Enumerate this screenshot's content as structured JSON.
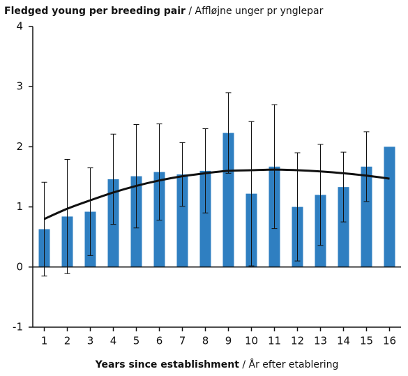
{
  "chart_data": {
    "type": "bar",
    "title_main": "Fledged young per breeding pair",
    "title_sub": " / Affløjne unger pr ynglepar",
    "xlabel_main": "Years since establishment",
    "xlabel_sub": " / År efter etablering",
    "x": [
      1,
      2,
      3,
      4,
      5,
      6,
      7,
      8,
      9,
      10,
      11,
      12,
      13,
      14,
      15,
      16
    ],
    "values": [
      0.63,
      0.84,
      0.92,
      1.46,
      1.51,
      1.58,
      1.54,
      1.6,
      2.23,
      1.22,
      1.67,
      1.0,
      1.2,
      1.33,
      1.67,
      2.0
    ],
    "errors": [
      0.78,
      0.95,
      0.73,
      0.75,
      0.86,
      0.8,
      0.53,
      0.7,
      0.67,
      1.2,
      1.03,
      0.9,
      0.84,
      0.58,
      0.58,
      null
    ],
    "trend": [
      0.8,
      0.97,
      1.11,
      1.24,
      1.35,
      1.44,
      1.51,
      1.56,
      1.6,
      1.61,
      1.62,
      1.61,
      1.59,
      1.56,
      1.52,
      1.47
    ],
    "color": "#2f7fc1",
    "trend_color": "#111111",
    "xlim": [
      0.5,
      16.5
    ],
    "xticks": [
      1,
      2,
      3,
      4,
      5,
      6,
      7,
      8,
      9,
      10,
      11,
      12,
      13,
      14,
      15,
      16
    ],
    "ylim": [
      -1,
      4
    ],
    "yticks": [
      -1,
      0,
      1,
      2,
      3,
      4
    ]
  }
}
